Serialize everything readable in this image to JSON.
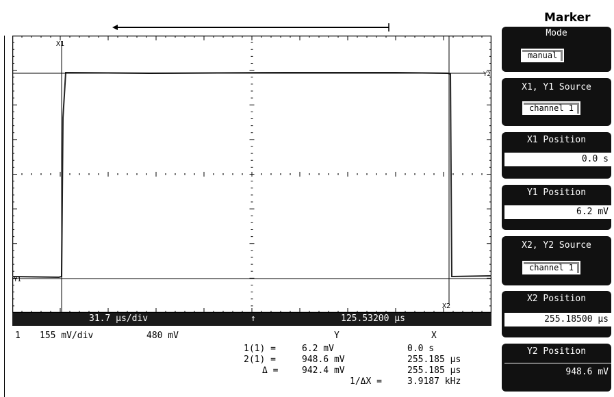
{
  "scope": {
    "timebase": "31.7 µs/div",
    "trigger_arrow": "↑",
    "delay": "125.53200 µs",
    "channel_line": {
      "channel": "1",
      "scale": "155 mV/div",
      "offset": "480 mV"
    },
    "markers": {
      "x1_label": "X1",
      "y1_label": "Y1",
      "x2_label": "X2",
      "y2_label": "Y2"
    },
    "readout": {
      "col_y": "Y",
      "col_x": "X",
      "rows": [
        {
          "label": "1(1) =",
          "y": "6.2 mV",
          "x": "0.0 s"
        },
        {
          "label": "2(1) =",
          "y": "948.6 mV",
          "x": "255.185 µs"
        },
        {
          "label": "Δ =",
          "y": "942.4 mV",
          "x": "255.185 µs"
        },
        {
          "label": "1/ΔX =",
          "y": "",
          "x": "3.9187 kHz"
        }
      ]
    }
  },
  "panel": {
    "title": "Marker",
    "mode_label": "Mode",
    "mode_value": "manual",
    "x1y1_source_label": "X1, Y1 Source",
    "x1y1_source_value": "channel 1",
    "x1_position_label": "X1 Position",
    "x1_position_value": "0.0 s",
    "y1_position_label": "Y1 Position",
    "y1_position_value": "6.2 mV",
    "x2y2_source_label": "X2, Y2 Source",
    "x2y2_source_value": "channel 1",
    "x2_position_label": "X2 Position",
    "x2_position_value": "255.18500 µs",
    "y2_position_label": "Y2 Position",
    "y2_position_value": "948.6 mV"
  },
  "colors": {
    "background": "#ffffff",
    "ink": "#000000",
    "softkey": "#111111"
  }
}
